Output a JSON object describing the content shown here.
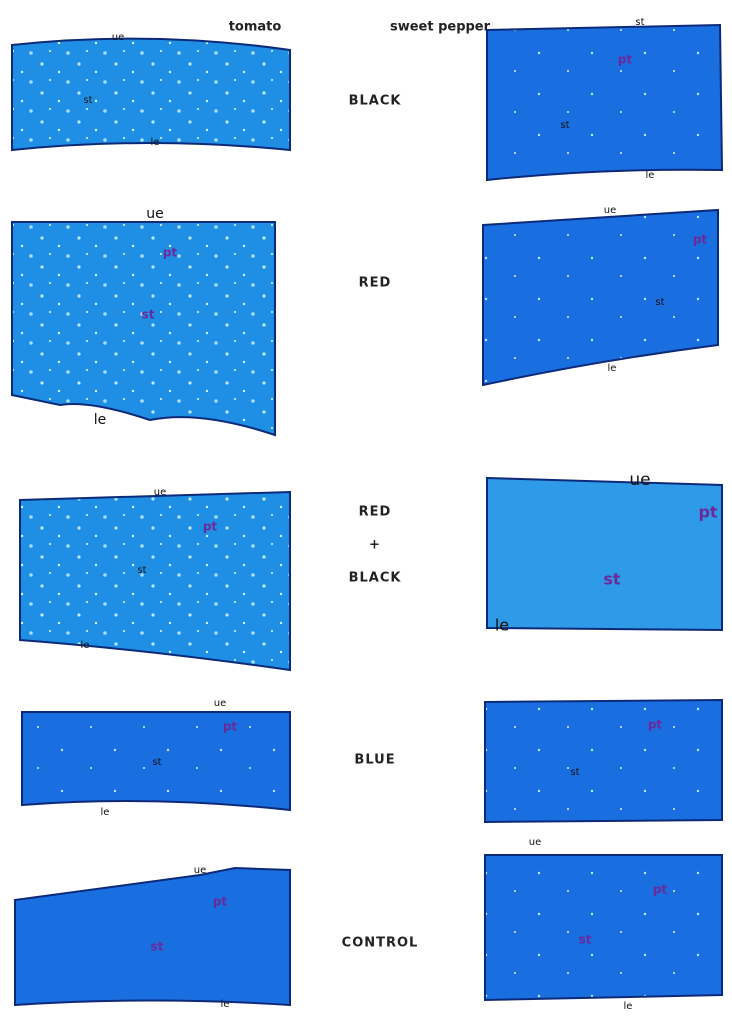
{
  "header": {
    "left": "tomato",
    "right": "sweet pepper"
  },
  "rows": [
    {
      "treatment": [
        "BLACK"
      ],
      "tomato": [
        "ue",
        "st",
        "le"
      ],
      "pepper": [
        "st",
        "pt",
        "st",
        "le"
      ]
    },
    {
      "treatment": [
        "RED"
      ],
      "tomato": [
        "ue",
        "pt",
        "st",
        "le"
      ],
      "pepper": [
        "ue",
        "pt",
        "st",
        "le"
      ]
    },
    {
      "treatment": [
        "RED",
        "+",
        "BLACK"
      ],
      "tomato": [
        "ue",
        "pt",
        "st",
        "le"
      ],
      "pepper": [
        "ue",
        "pt",
        "st",
        "le"
      ]
    },
    {
      "treatment": [
        "BLUE"
      ],
      "tomato": [
        "ue",
        "pt",
        "st",
        "le"
      ],
      "pepper": [
        "pt",
        "st"
      ]
    },
    {
      "treatment": [
        "CONTROL"
      ],
      "tomato": [
        "ue",
        "pt",
        "st",
        "le"
      ],
      "pepper": [
        "ue",
        "pt",
        "st",
        "le"
      ]
    }
  ]
}
